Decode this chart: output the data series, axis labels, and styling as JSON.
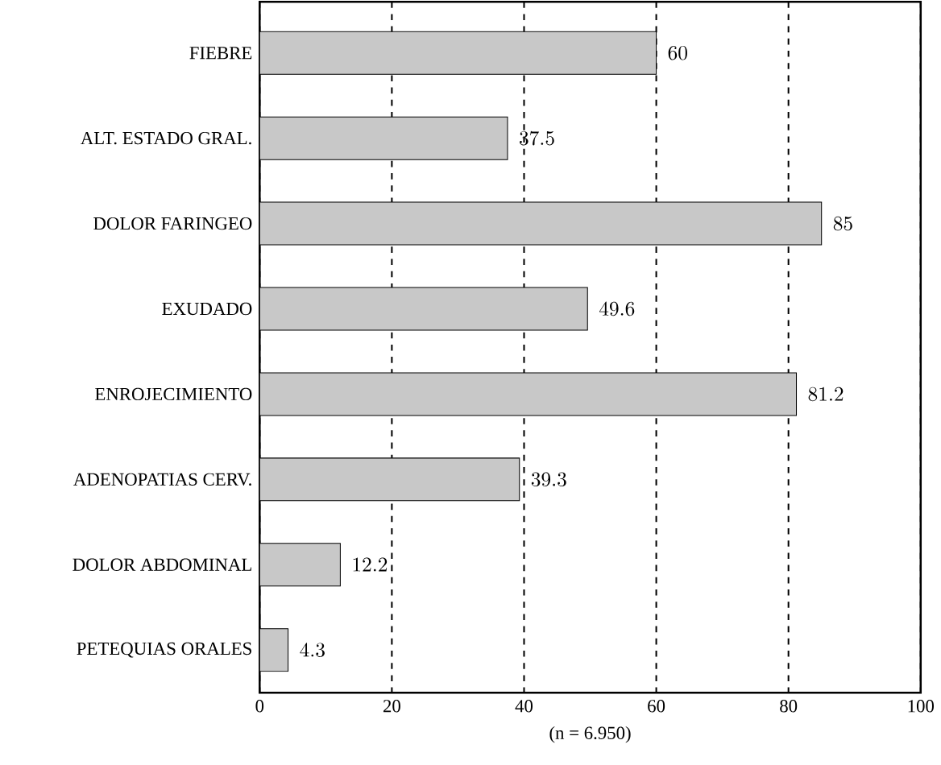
{
  "chart_data": {
    "type": "bar",
    "orientation": "horizontal",
    "xlabel": "(n = 6.950)",
    "categories": [
      "FIEBRE",
      "ALT. ESTADO GRAL.",
      "DOLOR FARINGEO",
      "EXUDADO",
      "ENROJECIMIENTO",
      "ADENOPATIAS CERV.",
      "DOLOR ABDOMINAL",
      "PETEQUIAS ORALES"
    ],
    "values": [
      60,
      37.5,
      85,
      49.6,
      81.2,
      39.3,
      12.2,
      4.3
    ],
    "color": "#c8c8c8",
    "xlim": [
      0,
      100
    ],
    "xticks": [
      0,
      20,
      40,
      60,
      80,
      100
    ],
    "grid": "x",
    "data_labels": true
  }
}
